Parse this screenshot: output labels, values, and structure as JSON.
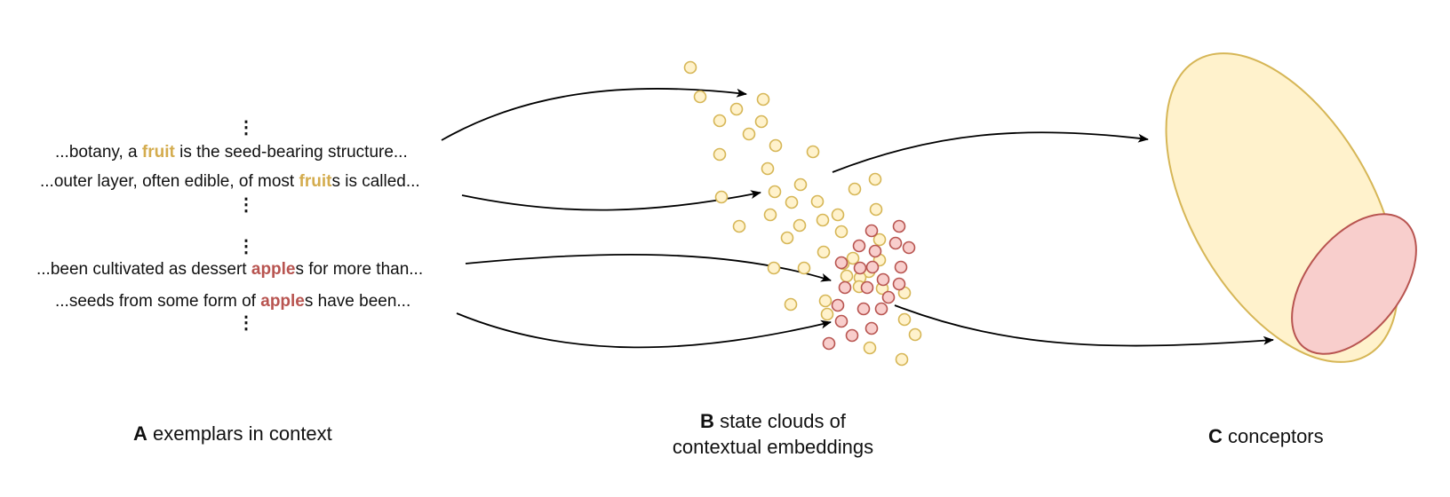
{
  "colors": {
    "fruit_fill": "#fff2cc",
    "fruit_stroke": "#d6b656",
    "fruit_text": "#d4ac4e",
    "apple_fill": "#f8cecc",
    "apple_stroke": "#b85450",
    "apple_text": "#b85450"
  },
  "panel_a": {
    "lines": [
      {
        "pre": "...botany, a ",
        "hl": "fruit",
        "post": " is the seed-bearing structure..."
      },
      {
        "pre": "...outer layer, often edible, of most ",
        "hl": "fruit",
        "post": "s is called..."
      },
      {
        "pre": "...been cultivated as dessert ",
        "hl": "apple",
        "post": "s for more than..."
      },
      {
        "pre": "...seeds from some form of ",
        "hl": "apple",
        "post": "s have been..."
      }
    ],
    "ellipsis": "⋮",
    "caption_letter": "A",
    "caption_text": "exemplars in context"
  },
  "panel_b": {
    "caption_letter": "B",
    "caption_line1": "state clouds of",
    "caption_line2": "contextual embeddings"
  },
  "panel_c": {
    "caption_letter": "C",
    "caption_text": "conceptors"
  }
}
